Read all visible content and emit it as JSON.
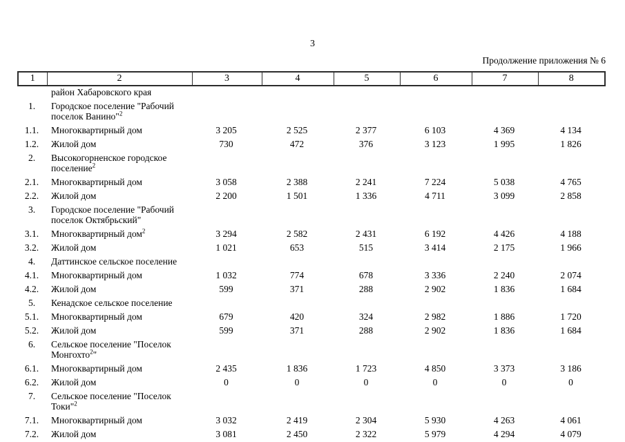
{
  "page": {
    "number": "3",
    "continuation": "Продолжение приложения № 6"
  },
  "table": {
    "header_cols": [
      "1",
      "2",
      "3",
      "4",
      "5",
      "6",
      "7",
      "8"
    ],
    "rows": [
      {
        "num": "",
        "text1": "район Хабаровского края",
        "sup": "",
        "text2": "",
        "v": [
          "",
          "",
          "",
          "",
          "",
          ""
        ]
      },
      {
        "num": "1.",
        "text1": "Городское поселение \"Рабочий поселок Ванино\"",
        "sup": "2",
        "text2": "",
        "v": [
          "",
          "",
          "",
          "",
          "",
          ""
        ]
      },
      {
        "num": "1.1.",
        "text1": "Многоквартирный дом",
        "sup": "",
        "text2": "",
        "v": [
          "3 205",
          "2 525",
          "2 377",
          "6 103",
          "4 369",
          "4 134"
        ]
      },
      {
        "num": "1.2.",
        "text1": "Жилой дом",
        "sup": "",
        "text2": "",
        "v": [
          "730",
          "472",
          "376",
          "3 123",
          "1 995",
          "1 826"
        ]
      },
      {
        "num": "2.",
        "text1": "Высокогорненское городское поселение",
        "sup": "2",
        "text2": "",
        "v": [
          "",
          "",
          "",
          "",
          "",
          ""
        ]
      },
      {
        "num": "2.1.",
        "text1": "Многоквартирный дом",
        "sup": "",
        "text2": "",
        "v": [
          "3 058",
          "2 388",
          "2 241",
          "7 224",
          "5 038",
          "4 765"
        ]
      },
      {
        "num": "2.2.",
        "text1": "Жилой дом",
        "sup": "",
        "text2": "",
        "v": [
          "2 200",
          "1 501",
          "1 336",
          "4 711",
          "3 099",
          "2 858"
        ]
      },
      {
        "num": "3.",
        "text1": "Городское поселение \"Рабочий поселок Октябрьский\"",
        "sup": "",
        "text2": "",
        "v": [
          "",
          "",
          "",
          "",
          "",
          ""
        ]
      },
      {
        "num": "3.1.",
        "text1": "Многоквартирный дом",
        "sup": "2",
        "text2": "",
        "v": [
          "3 294",
          "2 582",
          "2 431",
          "6 192",
          "4 426",
          "4 188"
        ]
      },
      {
        "num": "3.2.",
        "text1": "Жилой дом",
        "sup": "",
        "text2": "",
        "v": [
          "1 021",
          "653",
          "515",
          "3 414",
          "2 175",
          "1 966"
        ]
      },
      {
        "num": "4.",
        "text1": "Даттинское сельское поселение",
        "sup": "",
        "text2": "",
        "v": [
          "",
          "",
          "",
          "",
          "",
          ""
        ]
      },
      {
        "num": "4.1.",
        "text1": "Многоквартирный дом",
        "sup": "",
        "text2": "",
        "v": [
          "1 032",
          "774",
          "678",
          "3 336",
          "2 240",
          "2 074"
        ]
      },
      {
        "num": "4.2.",
        "text1": "Жилой дом",
        "sup": "",
        "text2": "",
        "v": [
          "599",
          "371",
          "288",
          "2 902",
          "1 836",
          "1 684"
        ]
      },
      {
        "num": "5.",
        "text1": "Кенадское сельское поселение",
        "sup": "",
        "text2": "",
        "v": [
          "",
          "",
          "",
          "",
          "",
          ""
        ]
      },
      {
        "num": "5.1.",
        "text1": "Многоквартирный дом",
        "sup": "",
        "text2": "",
        "v": [
          "679",
          "420",
          "324",
          "2 982",
          "1 886",
          "1 720"
        ]
      },
      {
        "num": "5.2.",
        "text1": "Жилой дом",
        "sup": "",
        "text2": "",
        "v": [
          "599",
          "371",
          "288",
          "2 902",
          "1 836",
          "1 684"
        ]
      },
      {
        "num": "6.",
        "text1": "Сельское поселение \"Поселок Монгохто",
        "sup": "2",
        "text2": "\"",
        "v": [
          "",
          "",
          "",
          "",
          "",
          ""
        ]
      },
      {
        "num": "6.1.",
        "text1": "Многоквартирный дом",
        "sup": "",
        "text2": "",
        "v": [
          "2 435",
          "1 836",
          "1 723",
          "4 850",
          "3 373",
          "3 186"
        ]
      },
      {
        "num": "6.2.",
        "text1": "Жилой дом",
        "sup": "",
        "text2": "",
        "v": [
          "0",
          "0",
          "0",
          "0",
          "0",
          "0"
        ]
      },
      {
        "num": "7.",
        "text1": "Сельское поселение \"Поселок Токи\"",
        "sup": "2",
        "text2": "",
        "v": [
          "",
          "",
          "",
          "",
          "",
          ""
        ]
      },
      {
        "num": "7.1.",
        "text1": "Многоквартирный дом",
        "sup": "",
        "text2": "",
        "v": [
          "3 032",
          "2 419",
          "2 304",
          "5 930",
          "4 263",
          "4 061"
        ]
      },
      {
        "num": "7.2.",
        "text1": "Жилой дом",
        "sup": "",
        "text2": "",
        "v": [
          "3 081",
          "2 450",
          "2 322",
          "5 979",
          "4 294",
          "4 079"
        ]
      }
    ]
  }
}
